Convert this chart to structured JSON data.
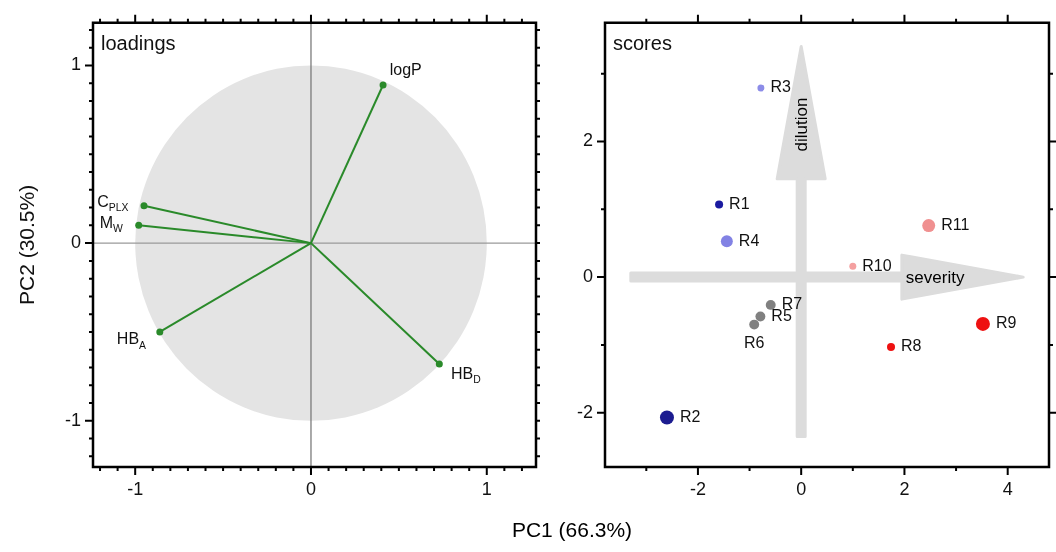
{
  "chart_data": [
    {
      "type": "line",
      "title": "loadings",
      "xlabel": "PC1 (66.3%)",
      "ylabel": "PC2 (30.5%)",
      "marker": "circle",
      "grid": false,
      "legend": false,
      "xlim": [
        -1.24,
        1.28
      ],
      "ylim": [
        -1.26,
        1.24
      ],
      "xticks": [
        {
          "value": -1.2,
          "label": null
        },
        {
          "value": -1.1,
          "label": null
        },
        -1,
        {
          "value": -0.9,
          "label": null
        },
        {
          "value": -0.8,
          "label": null
        },
        {
          "value": -0.7,
          "label": null
        },
        {
          "value": -0.6,
          "label": null
        },
        {
          "value": -0.5,
          "label": null
        },
        {
          "value": -0.4,
          "label": null
        },
        {
          "value": -0.3,
          "label": null
        },
        {
          "value": -0.2,
          "label": null
        },
        {
          "value": -0.1,
          "label": null
        },
        0,
        {
          "value": 0.1,
          "label": null
        },
        {
          "value": 0.2,
          "label": null
        },
        {
          "value": 0.3,
          "label": null
        },
        {
          "value": 0.4,
          "label": null
        },
        {
          "value": 0.5,
          "label": null
        },
        {
          "value": 0.6,
          "label": null
        },
        {
          "value": 0.7,
          "label": null
        },
        {
          "value": 0.8,
          "label": null
        },
        {
          "value": 0.9,
          "label": null
        },
        1,
        {
          "value": 1.1,
          "label": null
        },
        {
          "value": 1.2,
          "label": null
        }
      ],
      "yticks": [
        {
          "value": -1.2,
          "label": null
        },
        {
          "value": -1.1,
          "label": null
        },
        -1,
        {
          "value": -0.9,
          "label": null
        },
        {
          "value": -0.8,
          "label": null
        },
        {
          "value": -0.7,
          "label": null
        },
        {
          "value": -0.6,
          "label": null
        },
        {
          "value": -0.5,
          "label": null
        },
        {
          "value": -0.4,
          "label": null
        },
        {
          "value": -0.3,
          "label": null
        },
        {
          "value": -0.2,
          "label": null
        },
        {
          "value": -0.1,
          "label": null
        },
        0,
        {
          "value": 0.1,
          "label": null
        },
        {
          "value": 0.2,
          "label": null
        },
        {
          "value": 0.3,
          "label": null
        },
        {
          "value": 0.4,
          "label": null
        },
        {
          "value": 0.5,
          "label": null
        },
        {
          "value": 0.6,
          "label": null
        },
        {
          "value": 0.7,
          "label": null
        },
        {
          "value": 0.8,
          "label": null
        },
        {
          "value": 0.9,
          "label": null
        },
        1,
        {
          "value": 1.1,
          "label": null
        },
        {
          "value": 1.2,
          "label": null
        }
      ],
      "ref_lines": [
        {
          "axis": "x",
          "value": 0,
          "color": "#707070"
        },
        {
          "axis": "y",
          "value": 0,
          "color": "#9a9a9a"
        }
      ],
      "series": [
        {
          "name": "logP",
          "color": "#2a8a2a",
          "x": [
            0,
            0.41
          ],
          "values": [
            0,
            0.89
          ]
        },
        {
          "name": "C$_{PLX}$",
          "color": "#2a8a2a",
          "x": [
            0,
            -0.95
          ],
          "values": [
            0,
            0.21
          ]
        },
        {
          "name": "M$_{W}$",
          "color": "#2a8a2a",
          "x": [
            0,
            -0.98
          ],
          "values": [
            0,
            0.1
          ]
        },
        {
          "name": "HB$_{A}$",
          "color": "#2a8a2a",
          "x": [
            0,
            -0.86
          ],
          "values": [
            0,
            -0.5
          ]
        },
        {
          "name": "HB$_{D}$",
          "color": "#2a8a2a",
          "x": [
            0,
            0.73
          ],
          "values": [
            0,
            -0.68
          ]
        }
      ]
    },
    {
      "type": "bubble",
      "title": "scores",
      "grid": false,
      "legend": false,
      "annotations": [
        "dilution",
        "severity"
      ],
      "xlim": [
        -3.8,
        4.8
      ],
      "ylim": [
        -2.8,
        3.75
      ],
      "xticks": [
        {
          "value": -3,
          "label": null
        },
        -2,
        {
          "value": -1,
          "label": null
        },
        0,
        {
          "value": 1,
          "label": null
        },
        2,
        {
          "value": 3,
          "label": null
        },
        4
      ],
      "yticks": [
        -2,
        {
          "value": -1,
          "label": null
        },
        0,
        {
          "value": 1,
          "label": null
        },
        2,
        {
          "value": 3,
          "label": null
        }
      ],
      "series": [
        {
          "name": "R1",
          "color": "#1a1aa0",
          "x": [
            -1.59
          ],
          "values": [
            1.07
          ],
          "sizes": [
            0.33
          ]
        },
        {
          "name": "R2",
          "color": "#1c1c90",
          "x": [
            -2.6
          ],
          "values": [
            -2.07
          ],
          "sizes": [
            1
          ]
        },
        {
          "name": "R3",
          "color": "#8c8ce8",
          "x": [
            -0.78
          ],
          "values": [
            2.79
          ],
          "sizes": [
            0.25
          ]
        },
        {
          "name": "R4",
          "color": "#8282e4",
          "x": [
            -1.44
          ],
          "values": [
            0.53
          ],
          "sizes": [
            0.73
          ]
        },
        {
          "name": "R5",
          "color": "#808080",
          "x": [
            -0.79
          ],
          "values": [
            -0.58
          ],
          "sizes": [
            0.5
          ]
        },
        {
          "name": "R6",
          "color": "#808080",
          "x": [
            -0.91
          ],
          "values": [
            -0.7
          ],
          "sizes": [
            0.5
          ]
        },
        {
          "name": "R7",
          "color": "#808080",
          "x": [
            -0.59
          ],
          "values": [
            -0.41
          ],
          "sizes": [
            0.5
          ]
        },
        {
          "name": "R8",
          "color": "#ee1111",
          "x": [
            1.74
          ],
          "values": [
            -1.03
          ],
          "sizes": [
            0.33
          ]
        },
        {
          "name": "R9",
          "color": "#ee1111",
          "x": [
            3.52
          ],
          "values": [
            -0.69
          ],
          "sizes": [
            1
          ]
        },
        {
          "name": "R10",
          "color": "#f4a0a0",
          "x": [
            1.0
          ],
          "values": [
            0.16
          ],
          "sizes": [
            0.25
          ]
        },
        {
          "name": "R11",
          "color": "#f09090",
          "x": [
            2.47
          ],
          "values": [
            0.76
          ],
          "sizes": [
            0.86
          ]
        }
      ]
    }
  ]
}
